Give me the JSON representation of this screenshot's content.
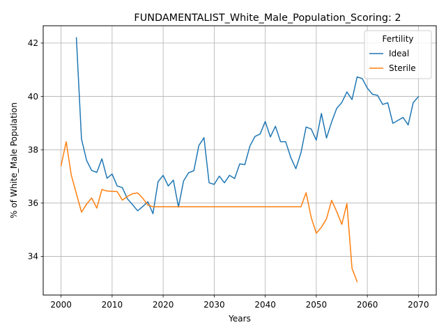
{
  "chart_data": {
    "type": "line",
    "title": "FUNDAMENTALIST_White_Male_Population_Scoring: 2",
    "xlabel": "Years",
    "ylabel": "% of White_Male Population",
    "xlim": [
      1996.5,
      2073.5
    ],
    "ylim": [
      32.55,
      42.65
    ],
    "x_ticks": [
      2000,
      2010,
      2020,
      2030,
      2040,
      2050,
      2060,
      2070
    ],
    "y_ticks": [
      34,
      36,
      38,
      40,
      42
    ],
    "grid": true,
    "legend": {
      "title": "Fertility",
      "placement": "top-right",
      "entries": [
        "Ideal",
        "Sterile"
      ]
    },
    "series": [
      {
        "name": "Ideal",
        "color": "#1f77b4",
        "x": [
          2003,
          2004,
          2005,
          2006,
          2007,
          2008,
          2009,
          2010,
          2011,
          2012,
          2013,
          2014,
          2015,
          2016,
          2017,
          2018,
          2019,
          2020,
          2021,
          2022,
          2023,
          2024,
          2025,
          2026,
          2027,
          2028,
          2029,
          2030,
          2031,
          2032,
          2033,
          2034,
          2035,
          2036,
          2037,
          2038,
          2039,
          2040,
          2041,
          2042,
          2043,
          2044,
          2045,
          2046,
          2047,
          2048,
          2049,
          2050,
          2051,
          2052,
          2053,
          2054,
          2055,
          2056,
          2057,
          2058,
          2059,
          2060,
          2061,
          2062,
          2063,
          2064,
          2065,
          2066,
          2067,
          2068,
          2069,
          2070
        ],
        "values": [
          42.2,
          38.4,
          37.6,
          37.22,
          37.15,
          37.66,
          36.93,
          37.09,
          36.64,
          36.58,
          36.16,
          35.94,
          35.71,
          35.87,
          36.05,
          35.6,
          36.8,
          37.04,
          36.64,
          36.86,
          35.85,
          36.83,
          37.14,
          37.21,
          38.16,
          38.45,
          36.76,
          36.7,
          37.01,
          36.76,
          37.04,
          36.92,
          37.47,
          37.44,
          38.14,
          38.5,
          38.59,
          39.06,
          38.48,
          38.88,
          38.3,
          38.3,
          37.71,
          37.29,
          37.89,
          38.85,
          38.78,
          38.36,
          39.36,
          38.44,
          39.04,
          39.55,
          39.77,
          40.17,
          39.88,
          40.73,
          40.67,
          40.31,
          40.08,
          40.04,
          39.7,
          39.76,
          38.99,
          39.1,
          39.21,
          38.93,
          39.77,
          39.99
        ]
      },
      {
        "name": "Sterile",
        "color": "#ff7f0e",
        "x": [
          2000,
          2001,
          2002,
          2003,
          2004,
          2005,
          2006,
          2007,
          2008,
          2009,
          2010,
          2011,
          2012,
          2013,
          2014,
          2015,
          2016,
          2017,
          2018,
          2019,
          2020,
          2021,
          2022,
          2023,
          2024,
          2025,
          2026,
          2027,
          2028,
          2029,
          2030,
          2031,
          2032,
          2033,
          2034,
          2035,
          2036,
          2037,
          2038,
          2039,
          2040,
          2041,
          2042,
          2043,
          2044,
          2045,
          2046,
          2047,
          2048,
          2049,
          2050,
          2051,
          2052,
          2053,
          2054,
          2055,
          2056,
          2057,
          2058
        ],
        "values": [
          37.4,
          38.3,
          37.05,
          36.35,
          35.66,
          35.96,
          36.19,
          35.81,
          36.51,
          36.45,
          36.44,
          36.43,
          36.11,
          36.25,
          36.35,
          36.38,
          36.18,
          35.93,
          35.86,
          35.86,
          35.86,
          35.86,
          35.86,
          35.86,
          35.86,
          35.86,
          35.86,
          35.86,
          35.86,
          35.86,
          35.86,
          35.86,
          35.86,
          35.86,
          35.86,
          35.86,
          35.86,
          35.86,
          35.86,
          35.86,
          35.86,
          35.86,
          35.86,
          35.86,
          35.86,
          35.86,
          35.86,
          35.86,
          36.39,
          35.46,
          34.87,
          35.09,
          35.41,
          36.1,
          35.68,
          35.2,
          35.98,
          33.55,
          33.05
        ]
      }
    ]
  }
}
